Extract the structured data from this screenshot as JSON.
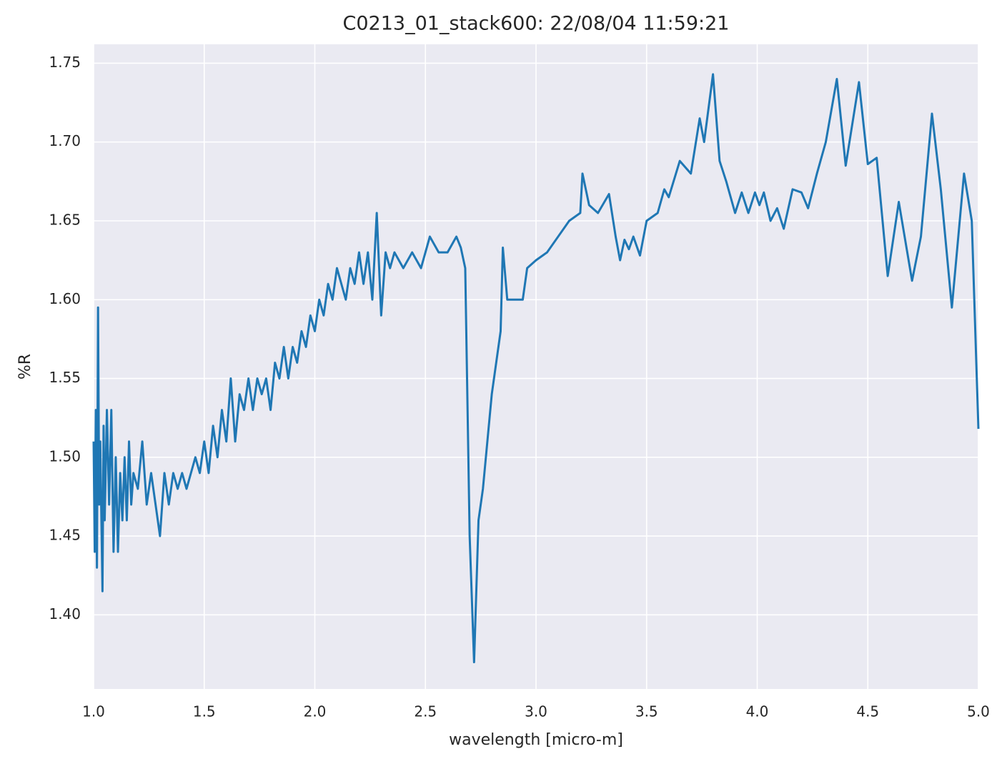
{
  "chart_data": {
    "type": "line",
    "title": "C0213_01_stack600:  22/08/04 11:59:21",
    "xlabel": "wavelength [micro-m]",
    "ylabel": "%R",
    "xlim": [
      1,
      5
    ],
    "ylim": [
      1.353,
      1.762
    ],
    "xticks": [
      {
        "value": 1,
        "label": "1.0"
      },
      1.5,
      {
        "value": 2,
        "label": "2.0"
      },
      2.5,
      {
        "value": 3,
        "label": "3.0"
      },
      3.5,
      {
        "value": 4,
        "label": "4.0"
      },
      4.5,
      {
        "value": 5,
        "label": "5.0"
      }
    ],
    "yticks": [
      {
        "value": 1.4,
        "label": "1.40"
      },
      1.45,
      {
        "value": 1.5,
        "label": "1.50"
      },
      1.55,
      {
        "value": 1.6,
        "label": "1.60"
      },
      1.65,
      {
        "value": 1.7,
        "label": "1.70"
      },
      1.75
    ],
    "grid": true,
    "background": "#eaeaf2",
    "series": [
      {
        "color": "#1f77b4",
        "x": [
          1.0,
          1.005,
          1.01,
          1.015,
          1.02,
          1.025,
          1.03,
          1.04,
          1.045,
          1.05,
          1.06,
          1.07,
          1.08,
          1.09,
          1.1,
          1.11,
          1.12,
          1.13,
          1.14,
          1.15,
          1.16,
          1.17,
          1.18,
          1.2,
          1.22,
          1.24,
          1.26,
          1.28,
          1.3,
          1.32,
          1.34,
          1.36,
          1.38,
          1.4,
          1.42,
          1.44,
          1.46,
          1.48,
          1.5,
          1.52,
          1.54,
          1.56,
          1.58,
          1.6,
          1.62,
          1.64,
          1.66,
          1.68,
          1.7,
          1.72,
          1.74,
          1.76,
          1.78,
          1.8,
          1.82,
          1.84,
          1.86,
          1.88,
          1.9,
          1.92,
          1.94,
          1.96,
          1.98,
          2.0,
          2.02,
          2.04,
          2.06,
          2.08,
          2.1,
          2.12,
          2.14,
          2.16,
          2.18,
          2.2,
          2.22,
          2.24,
          2.26,
          2.28,
          2.3,
          2.32,
          2.34,
          2.36,
          2.4,
          2.44,
          2.48,
          2.52,
          2.56,
          2.6,
          2.64,
          2.66,
          2.68,
          2.7,
          2.72,
          2.74,
          2.76,
          2.8,
          2.84,
          2.85,
          2.87,
          2.9,
          2.94,
          2.96,
          3.0,
          3.05,
          3.1,
          3.15,
          3.2,
          3.21,
          3.24,
          3.28,
          3.33,
          3.36,
          3.38,
          3.4,
          3.42,
          3.44,
          3.47,
          3.5,
          3.55,
          3.58,
          3.6,
          3.65,
          3.7,
          3.74,
          3.76,
          3.8,
          3.83,
          3.86,
          3.9,
          3.93,
          3.96,
          3.99,
          4.01,
          4.03,
          4.06,
          4.09,
          4.12,
          4.16,
          4.2,
          4.23,
          4.27,
          4.31,
          4.36,
          4.4,
          4.46,
          4.5,
          4.54,
          4.59,
          4.64,
          4.7,
          4.74,
          4.79,
          4.83,
          4.88,
          4.935,
          4.97,
          5.0
        ],
        "values": [
          1.51,
          1.44,
          1.53,
          1.43,
          1.595,
          1.47,
          1.51,
          1.415,
          1.52,
          1.46,
          1.53,
          1.47,
          1.53,
          1.44,
          1.5,
          1.44,
          1.49,
          1.46,
          1.5,
          1.46,
          1.51,
          1.47,
          1.49,
          1.48,
          1.51,
          1.47,
          1.49,
          1.47,
          1.45,
          1.49,
          1.47,
          1.49,
          1.48,
          1.49,
          1.48,
          1.49,
          1.5,
          1.49,
          1.51,
          1.49,
          1.52,
          1.5,
          1.53,
          1.51,
          1.55,
          1.51,
          1.54,
          1.53,
          1.55,
          1.53,
          1.55,
          1.54,
          1.55,
          1.53,
          1.56,
          1.55,
          1.57,
          1.55,
          1.57,
          1.56,
          1.58,
          1.57,
          1.59,
          1.58,
          1.6,
          1.59,
          1.61,
          1.6,
          1.62,
          1.61,
          1.6,
          1.62,
          1.61,
          1.63,
          1.61,
          1.63,
          1.6,
          1.655,
          1.59,
          1.63,
          1.62,
          1.63,
          1.62,
          1.63,
          1.62,
          1.64,
          1.63,
          1.63,
          1.64,
          1.633,
          1.62,
          1.45,
          1.37,
          1.46,
          1.48,
          1.54,
          1.58,
          1.633,
          1.6,
          1.6,
          1.6,
          1.62,
          1.625,
          1.63,
          1.64,
          1.65,
          1.655,
          1.68,
          1.66,
          1.655,
          1.667,
          1.64,
          1.625,
          1.638,
          1.632,
          1.64,
          1.628,
          1.65,
          1.655,
          1.67,
          1.665,
          1.688,
          1.68,
          1.715,
          1.7,
          1.743,
          1.688,
          1.675,
          1.655,
          1.668,
          1.655,
          1.668,
          1.66,
          1.668,
          1.65,
          1.658,
          1.645,
          1.67,
          1.668,
          1.658,
          1.68,
          1.7,
          1.74,
          1.685,
          1.738,
          1.686,
          1.69,
          1.615,
          1.662,
          1.612,
          1.64,
          1.718,
          1.67,
          1.595,
          1.68,
          1.65,
          1.518
        ]
      }
    ]
  }
}
